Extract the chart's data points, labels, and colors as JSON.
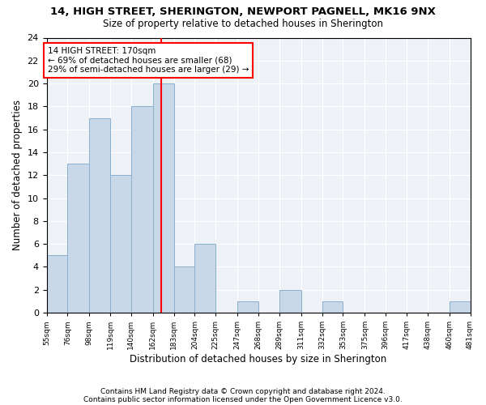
{
  "title1": "14, HIGH STREET, SHERINGTON, NEWPORT PAGNELL, MK16 9NX",
  "title2": "Size of property relative to detached houses in Sherington",
  "xlabel": "Distribution of detached houses by size in Sherington",
  "ylabel": "Number of detached properties",
  "footnote1": "Contains HM Land Registry data © Crown copyright and database right 2024.",
  "footnote2": "Contains public sector information licensed under the Open Government Licence v3.0.",
  "annotation_line1": "14 HIGH STREET: 170sqm",
  "annotation_line2": "← 69% of detached houses are smaller (68)",
  "annotation_line3": "29% of semi-detached houses are larger (29) →",
  "bar_edges": [
    55,
    76,
    98,
    119,
    140,
    162,
    183,
    204,
    225,
    247,
    268,
    289,
    311,
    332,
    353,
    375,
    396,
    417,
    438,
    460,
    481
  ],
  "bar_heights": [
    5,
    13,
    17,
    12,
    18,
    20,
    4,
    6,
    0,
    1,
    0,
    2,
    0,
    1,
    0,
    0,
    0,
    0,
    0,
    1
  ],
  "property_value": 170,
  "bar_color": "#c8d8e8",
  "bar_edge_color": "#8ab0cc",
  "vline_color": "red",
  "annotation_box_color": "red",
  "background_color": "#eef2f7",
  "ylim": [
    0,
    24
  ],
  "yticks": [
    0,
    2,
    4,
    6,
    8,
    10,
    12,
    14,
    16,
    18,
    20,
    22,
    24
  ]
}
